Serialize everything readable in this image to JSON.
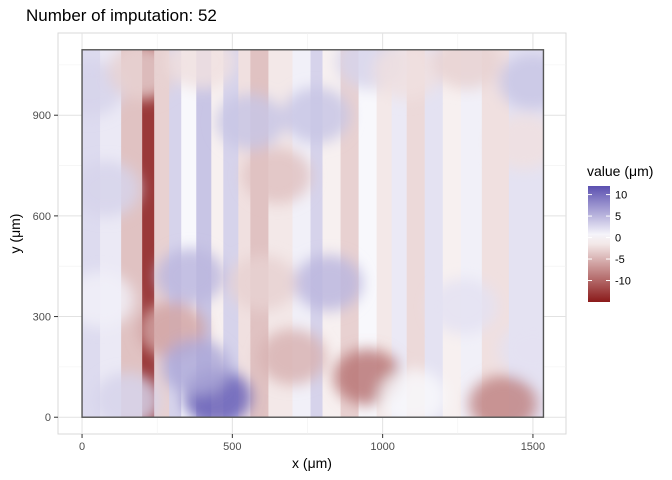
{
  "chart_data": {
    "type": "heatmap",
    "title": "Number of imputation: 52",
    "xlabel": "x (μm)",
    "ylabel": "y (μm)",
    "xlim": [
      -80,
      1610
    ],
    "ylim": [
      -50,
      1145
    ],
    "x_ticks": [
      0,
      500,
      1000,
      1500
    ],
    "x_tick_labels": [
      "0",
      "500",
      "1000",
      "1500"
    ],
    "y_ticks": [
      0,
      300,
      600,
      900
    ],
    "y_tick_labels": [
      "0",
      "300",
      "600",
      "900"
    ],
    "data_extent": {
      "x": [
        0,
        1535
      ],
      "y": [
        0,
        1095
      ]
    },
    "grid": true,
    "legend": {
      "title": "value (μm)",
      "position": "right",
      "range": [
        -15,
        12
      ],
      "ticks": [
        10,
        5,
        0,
        -5,
        -10
      ],
      "tick_labels": [
        "10",
        "5",
        "0",
        "-5",
        "-10"
      ]
    },
    "colors": {
      "low": "#8b1a1a",
      "mid": "#ffffff",
      "high": "#5b50b0"
    },
    "surface_bands": [
      {
        "x": [
          0,
          60
        ],
        "value": 2.5
      },
      {
        "x": [
          60,
          130
        ],
        "value": 1.5
      },
      {
        "x": [
          130,
          200
        ],
        "value": -4
      },
      {
        "x": [
          200,
          240
        ],
        "value": -13
      },
      {
        "x": [
          240,
          290
        ],
        "value": -3
      },
      {
        "x": [
          290,
          330
        ],
        "value": 3
      },
      {
        "x": [
          330,
          380
        ],
        "value": 0.5
      },
      {
        "x": [
          380,
          430
        ],
        "value": 4
      },
      {
        "x": [
          430,
          470
        ],
        "value": -1
      },
      {
        "x": [
          470,
          520
        ],
        "value": 3
      },
      {
        "x": [
          520,
          560
        ],
        "value": -2
      },
      {
        "x": [
          560,
          620
        ],
        "value": -4
      },
      {
        "x": [
          620,
          700
        ],
        "value": -1.5
      },
      {
        "x": [
          700,
          760
        ],
        "value": 1
      },
      {
        "x": [
          760,
          800
        ],
        "value": 3
      },
      {
        "x": [
          800,
          860
        ],
        "value": -1
      },
      {
        "x": [
          860,
          920
        ],
        "value": -3
      },
      {
        "x": [
          920,
          980
        ],
        "value": 0.5
      },
      {
        "x": [
          980,
          1030
        ],
        "value": -1.5
      },
      {
        "x": [
          1030,
          1080
        ],
        "value": 1.5
      },
      {
        "x": [
          1080,
          1140
        ],
        "value": -2.5
      },
      {
        "x": [
          1140,
          1200
        ],
        "value": 2
      },
      {
        "x": [
          1200,
          1260
        ],
        "value": -1
      },
      {
        "x": [
          1260,
          1330
        ],
        "value": 1
      },
      {
        "x": [
          1330,
          1420
        ],
        "value": -2
      },
      {
        "x": [
          1420,
          1535
        ],
        "value": 2
      }
    ],
    "patches": [
      {
        "x": 25,
        "y": 980,
        "value": 3
      },
      {
        "x": 200,
        "y": 1030,
        "value": -3
      },
      {
        "x": 400,
        "y": 1060,
        "value": -2
      },
      {
        "x": 560,
        "y": 880,
        "value": 4
      },
      {
        "x": 650,
        "y": 720,
        "value": -4
      },
      {
        "x": 780,
        "y": 900,
        "value": 4
      },
      {
        "x": 960,
        "y": 1060,
        "value": 3
      },
      {
        "x": 1080,
        "y": 1030,
        "value": -2
      },
      {
        "x": 1280,
        "y": 1060,
        "value": -3
      },
      {
        "x": 1500,
        "y": 1000,
        "value": 4
      },
      {
        "x": 1470,
        "y": 820,
        "value": -2
      },
      {
        "x": 80,
        "y": 680,
        "value": 3
      },
      {
        "x": 60,
        "y": 350,
        "value": 1
      },
      {
        "x": 360,
        "y": 420,
        "value": 5
      },
      {
        "x": 300,
        "y": 260,
        "value": -6
      },
      {
        "x": 150,
        "y": 50,
        "value": 3
      },
      {
        "x": 450,
        "y": 60,
        "value": 11
      },
      {
        "x": 380,
        "y": 150,
        "value": 6
      },
      {
        "x": 700,
        "y": 180,
        "value": -5
      },
      {
        "x": 950,
        "y": 120,
        "value": -9
      },
      {
        "x": 1100,
        "y": 60,
        "value": 0.5
      },
      {
        "x": 1400,
        "y": 40,
        "value": -8
      },
      {
        "x": 1500,
        "y": 200,
        "value": 2
      },
      {
        "x": 1270,
        "y": 330,
        "value": 2
      },
      {
        "x": 820,
        "y": 400,
        "value": 5
      },
      {
        "x": 600,
        "y": 400,
        "value": -3
      }
    ]
  }
}
